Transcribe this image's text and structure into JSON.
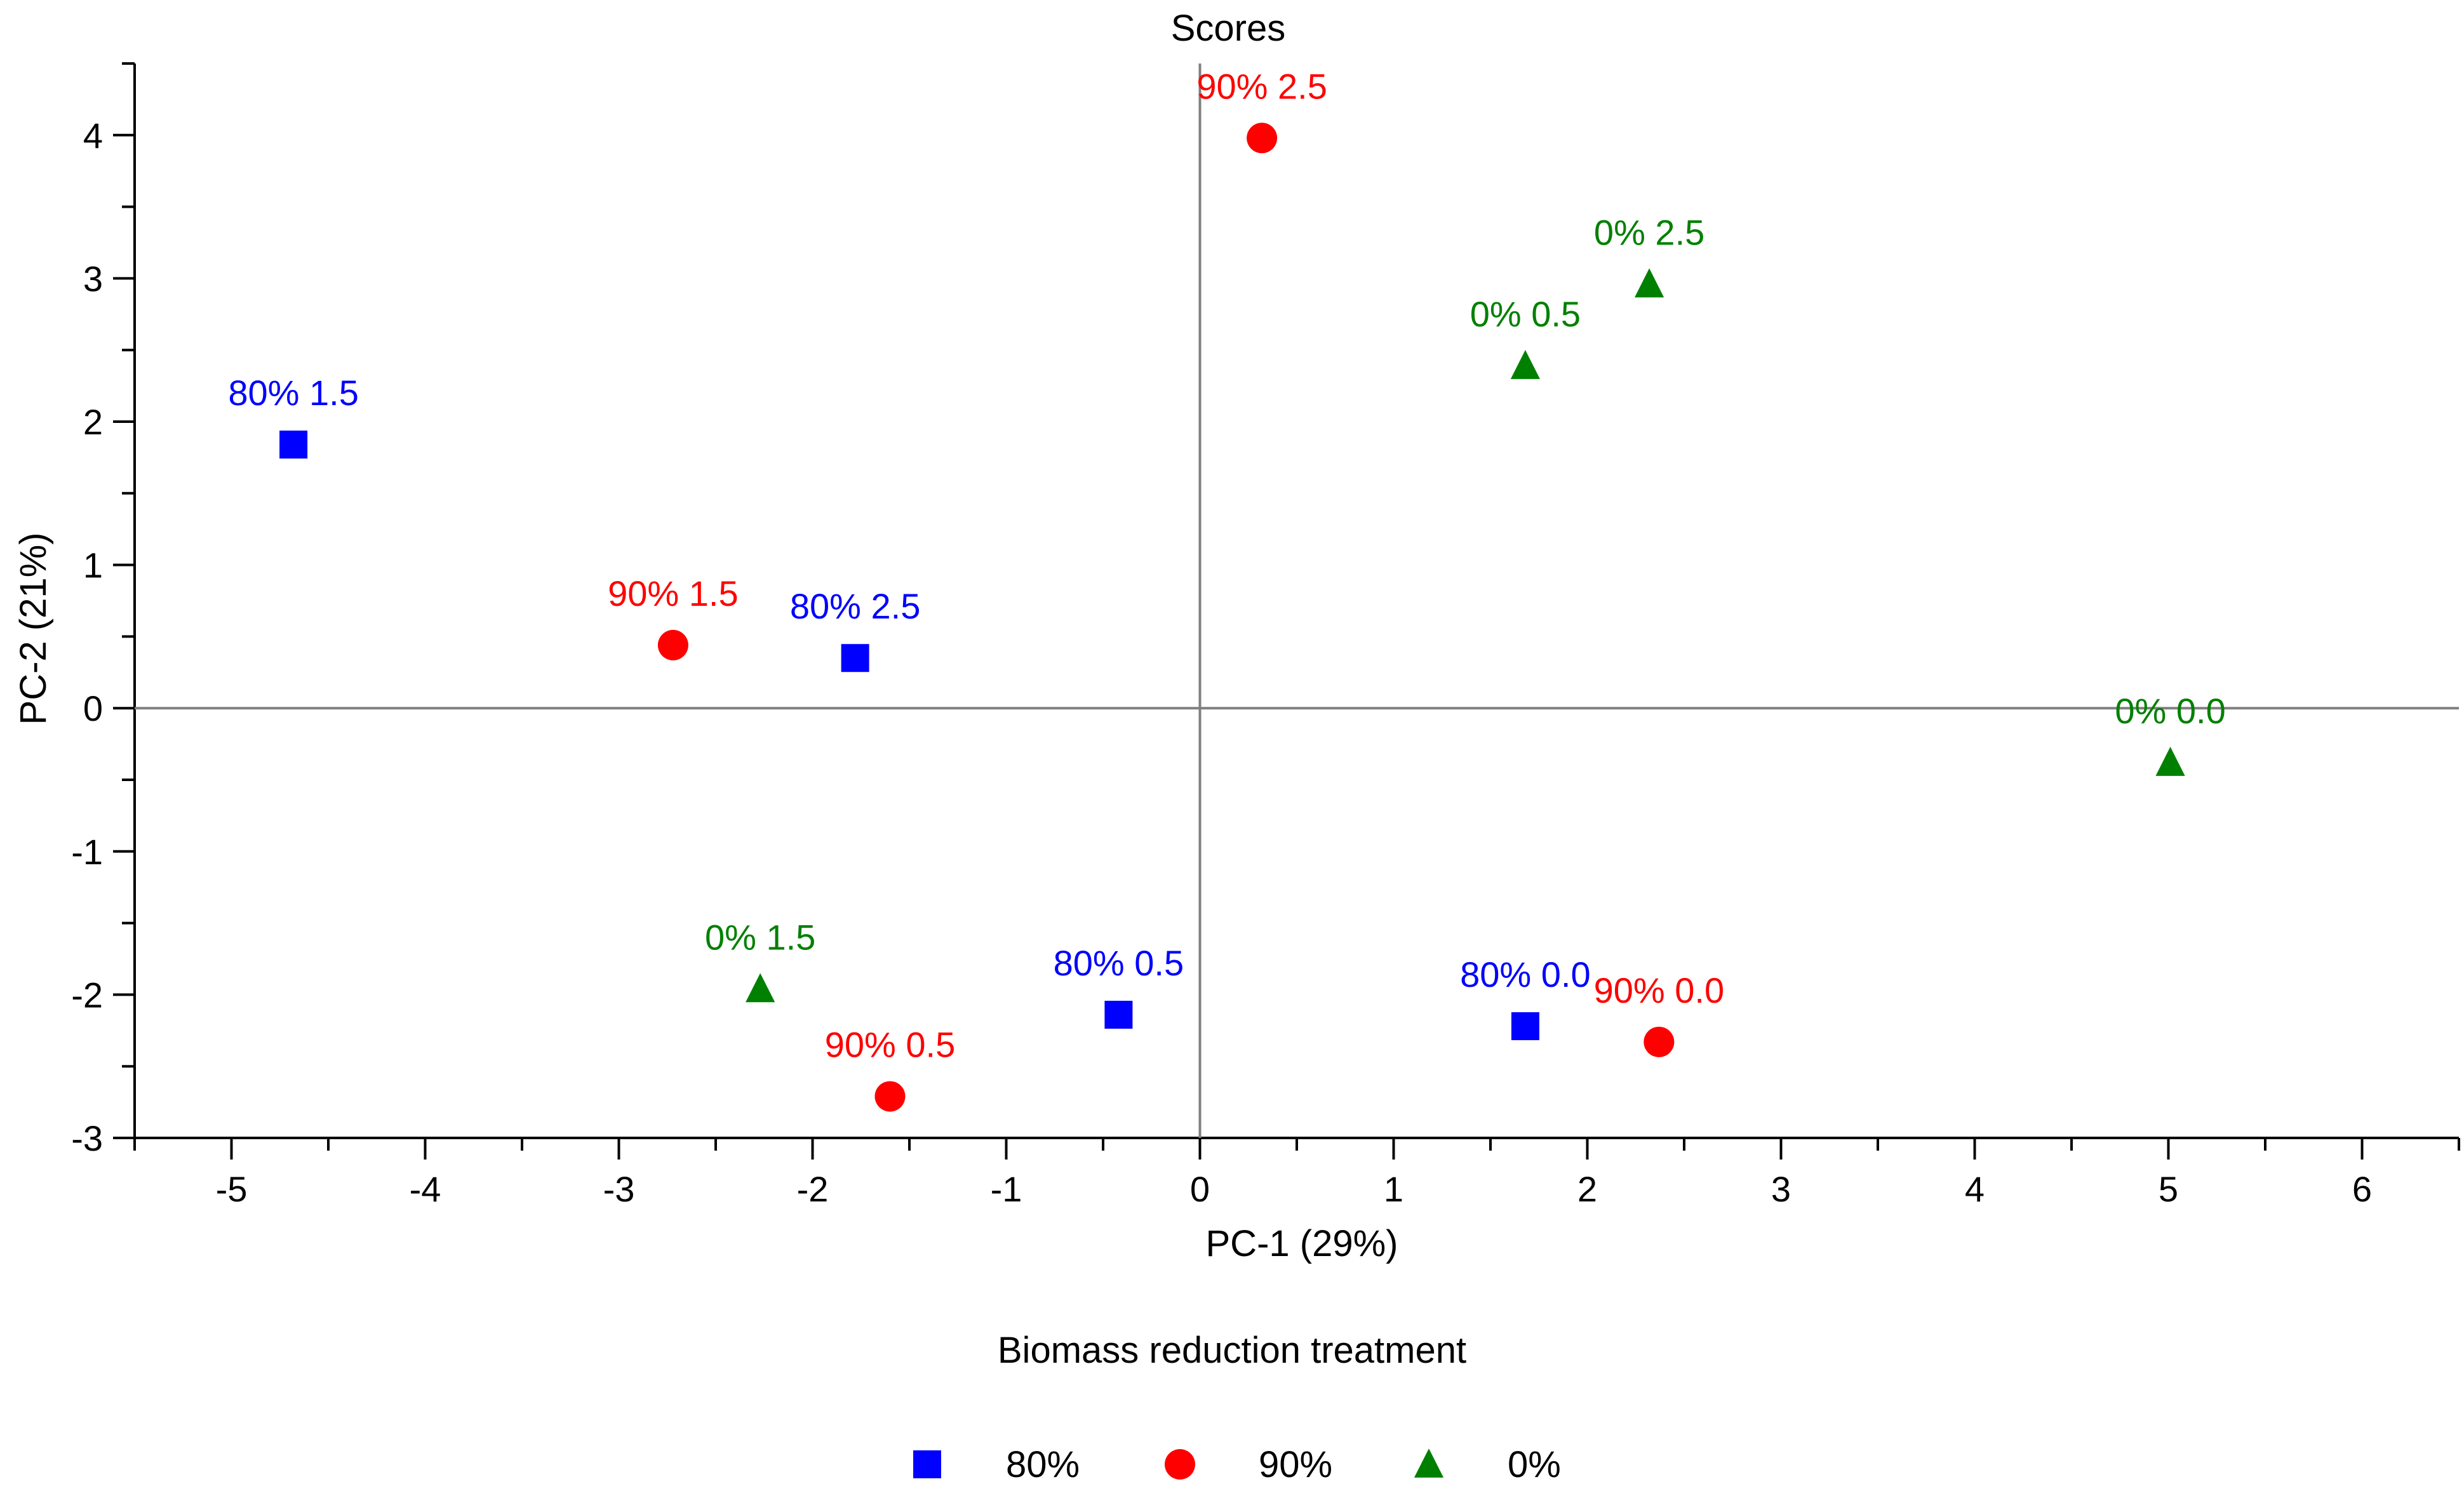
{
  "chart_data": {
    "type": "scatter",
    "title": "Scores",
    "xlabel": "PC-1 (29%)",
    "ylabel": "PC-2 (21%)",
    "xlim": [
      -5.5,
      6.5
    ],
    "ylim": [
      -3,
      4.5
    ],
    "x_ticks": [
      -5,
      -4,
      -3,
      -2,
      -1,
      0,
      1,
      2,
      3,
      4,
      5,
      6
    ],
    "y_ticks": [
      -3,
      -2,
      -1,
      0,
      1,
      2,
      3,
      4
    ],
    "grid": false,
    "zero_lines": true,
    "legend": {
      "title": "Biomass reduction treatment",
      "placement": "bottom"
    },
    "series": [
      {
        "name": "80%",
        "marker": "square",
        "color": "#0000ff",
        "points": [
          {
            "x": -4.68,
            "y": 1.84,
            "label": "80% 1.5"
          },
          {
            "x": -1.78,
            "y": 0.35,
            "label": "80% 2.5"
          },
          {
            "x": -0.42,
            "y": -2.14,
            "label": "80% 0.5"
          },
          {
            "x": 1.68,
            "y": -2.22,
            "label": "80% 0.0"
          }
        ]
      },
      {
        "name": "90%",
        "marker": "circle",
        "color": "#ff0000",
        "points": [
          {
            "x": 0.32,
            "y": 3.98,
            "label": "90% 2.5"
          },
          {
            "x": -2.72,
            "y": 0.44,
            "label": "90% 1.5"
          },
          {
            "x": -1.6,
            "y": -2.71,
            "label": "90% 0.5"
          },
          {
            "x": 2.37,
            "y": -2.33,
            "label": "90% 0.0"
          }
        ]
      },
      {
        "name": "0%",
        "marker": "triangle",
        "color": "#008000",
        "points": [
          {
            "x": 2.32,
            "y": 2.96,
            "label": "0% 2.5"
          },
          {
            "x": 1.68,
            "y": 2.39,
            "label": "0% 0.5"
          },
          {
            "x": 5.01,
            "y": -0.38,
            "label": "0% 0.0"
          },
          {
            "x": -2.27,
            "y": -1.96,
            "label": "0% 1.5"
          }
        ]
      }
    ]
  }
}
